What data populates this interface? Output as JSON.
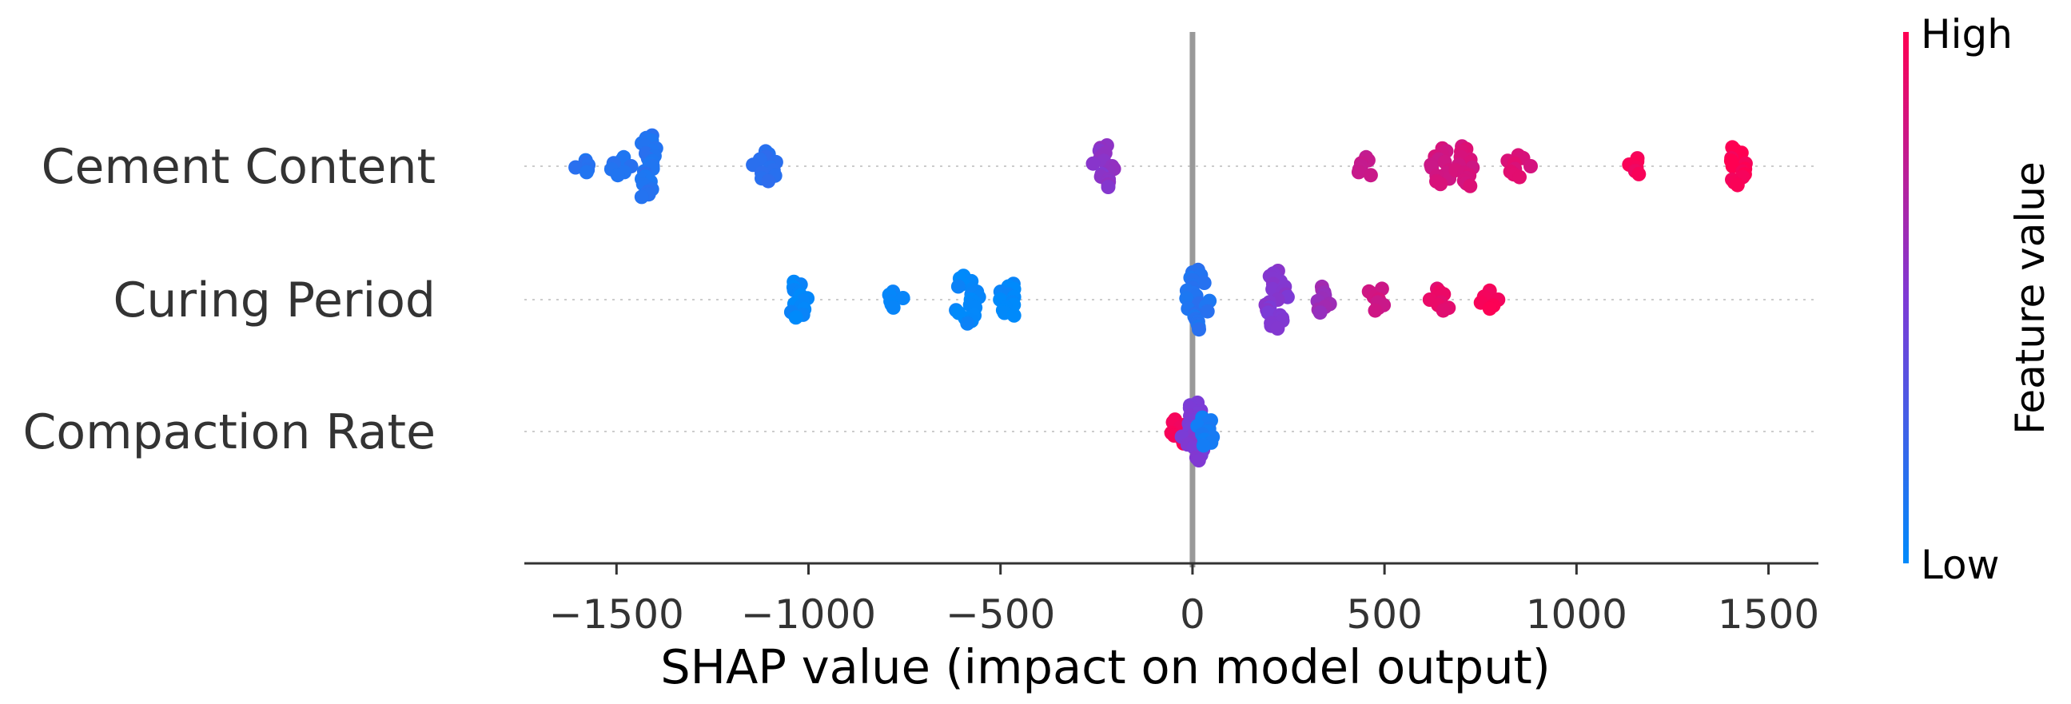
{
  "chart_data": {
    "type": "scatter",
    "subtype": "shap-beeswarm",
    "title": "",
    "xlabel": "SHAP value (impact on model output)",
    "ylabel": "",
    "xlim": [
      -1740,
      1630
    ],
    "x_ticks": [
      -1500,
      -1000,
      -500,
      0,
      500,
      1000,
      1500
    ],
    "x_tick_labels": [
      "−1500",
      "−1000",
      "−500",
      "0",
      "500",
      "1000",
      "1500"
    ],
    "zero_line": true,
    "features": [
      {
        "name": "Cement Content",
        "clusters": [
          {
            "x": -1585,
            "v": 0.14,
            "spread": 0.12
          },
          {
            "x": -1490,
            "v": 0.14,
            "spread": 0.18
          },
          {
            "x": -1420,
            "v": 0.14,
            "spread": 0.62
          },
          {
            "x": -1110,
            "v": 0.16,
            "spread": 0.3
          },
          {
            "x": -225,
            "v": 0.55,
            "spread": 0.42
          },
          {
            "x": 450,
            "v": 0.78,
            "spread": 0.18
          },
          {
            "x": 650,
            "v": 0.82,
            "spread": 0.36
          },
          {
            "x": 710,
            "v": 0.84,
            "spread": 0.4
          },
          {
            "x": 845,
            "v": 0.86,
            "spread": 0.22
          },
          {
            "x": 1150,
            "v": 0.96,
            "spread": 0.16
          },
          {
            "x": 1420,
            "v": 0.98,
            "spread": 0.38
          }
        ]
      },
      {
        "name": "Curing Period",
        "clusters": [
          {
            "x": -1025,
            "v": 0.02,
            "spread": 0.36
          },
          {
            "x": -785,
            "v": 0.02,
            "spread": 0.16
          },
          {
            "x": -590,
            "v": 0.02,
            "spread": 0.48
          },
          {
            "x": -475,
            "v": 0.02,
            "spread": 0.32
          },
          {
            "x": 15,
            "v": 0.14,
            "spread": 0.6
          },
          {
            "x": 215,
            "v": 0.52,
            "spread": 0.58
          },
          {
            "x": 330,
            "v": 0.62,
            "spread": 0.26
          },
          {
            "x": 480,
            "v": 0.82,
            "spread": 0.22
          },
          {
            "x": 650,
            "v": 0.9,
            "spread": 0.22
          },
          {
            "x": 770,
            "v": 0.97,
            "spread": 0.18
          }
        ]
      },
      {
        "name": "Compaction Rate",
        "clusters": [
          {
            "x": -35,
            "v": 0.95,
            "spread": 0.24
          },
          {
            "x": 5,
            "v": 0.5,
            "spread": 0.58
          },
          {
            "x": 30,
            "v": 0.08,
            "spread": 0.28
          }
        ]
      }
    ],
    "colorbar": {
      "label": "Feature value",
      "high_label": "High",
      "low_label": "Low",
      "low_color": "#008afb",
      "mid_color": "#7e3ad5",
      "high_color": "#ff0052"
    }
  }
}
